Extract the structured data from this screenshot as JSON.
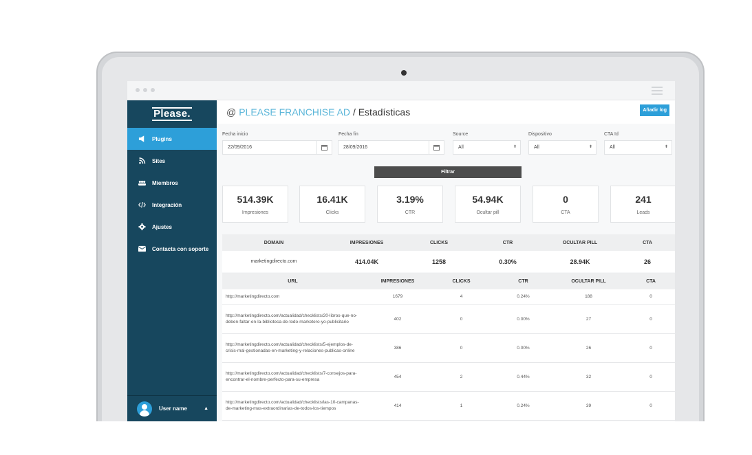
{
  "app": {
    "logo": "Please.",
    "header_at": "@",
    "brand_title": "PLEASE FRANCHISE AD",
    "page_sep": "/",
    "page_title": "Estadísticas",
    "add_log_label": "Añadir log"
  },
  "sidebar": {
    "items": [
      {
        "label": "Plugins",
        "icon": "megaphone-icon",
        "active": true
      },
      {
        "label": "Sites",
        "icon": "rss-icon",
        "active": false
      },
      {
        "label": "Miembros",
        "icon": "users-icon",
        "active": false
      },
      {
        "label": "Integración",
        "icon": "code-icon",
        "active": false
      },
      {
        "label": "Ajustes",
        "icon": "gear-icon",
        "active": false
      },
      {
        "label": "Contacta con soporte",
        "icon": "envelope-icon",
        "active": false
      }
    ],
    "user_name": "User name"
  },
  "filters": {
    "start_label": "Fecha inicio",
    "start_value": "22/09/2016",
    "end_label": "Fecha fin",
    "end_value": "28/09/2016",
    "source_label": "Source",
    "source_value": "All",
    "device_label": "Dispositivo",
    "device_value": "All",
    "cta_label": "CTA Id",
    "cta_value": "All",
    "filter_button": "Filtrar"
  },
  "stats": [
    {
      "value": "514.39K",
      "label": "Impresiones"
    },
    {
      "value": "16.41K",
      "label": "Clicks"
    },
    {
      "value": "3.19%",
      "label": "CTR"
    },
    {
      "value": "54.94K",
      "label": "Ocultar pill"
    },
    {
      "value": "0",
      "label": "CTA"
    },
    {
      "value": "241",
      "label": "Leads"
    }
  ],
  "domain_table": {
    "headers": [
      "DOMAIN",
      "IMPRESIONES",
      "CLICKS",
      "CTR",
      "OCULTAR PILL",
      "CTA"
    ],
    "row": [
      "marketingdirecto.com",
      "414.04K",
      "1258",
      "0.30%",
      "28.94K",
      "26"
    ]
  },
  "url_table": {
    "headers": [
      "URL",
      "IMPRESIONES",
      "CLICKS",
      "CTR",
      "OCULTAR PILL",
      "CTA"
    ],
    "rows": [
      [
        "http://marketingdirecto.com",
        "1679",
        "4",
        "0.24%",
        "188",
        "0"
      ],
      [
        "http://marketingdirecto.com/actualidad/checklists/20-libros-que-no-deben-faltar-en-la-biblioteca-de-todo-marketero-yo-publicitario",
        "402",
        "0",
        "0.00%",
        "27",
        "0"
      ],
      [
        "http://marketingdirecto.com/actualidad/checklists/5-ejemplos-de-crisis-mal-gestionadas-en-marketing-y-relaciones-publicas-online",
        "386",
        "0",
        "0.00%",
        "26",
        "0"
      ],
      [
        "http://marketingdirecto.com/actualidad/checklists/7-consejos-para-encontrar-el-nombre-perfecto-para-su-empresa",
        "454",
        "2",
        "0.44%",
        "32",
        "0"
      ],
      [
        "http://marketingdirecto.com/actualidad/checklists/las-10-campanas-de-marketing-mas-extraordinarias-de-todos-los-tiempos",
        "414",
        "1",
        "0.24%",
        "39",
        "0"
      ]
    ]
  },
  "colors": {
    "sidebar": "#17475e",
    "accent": "#2d9fd9",
    "brand_text": "#5bb6d9"
  }
}
